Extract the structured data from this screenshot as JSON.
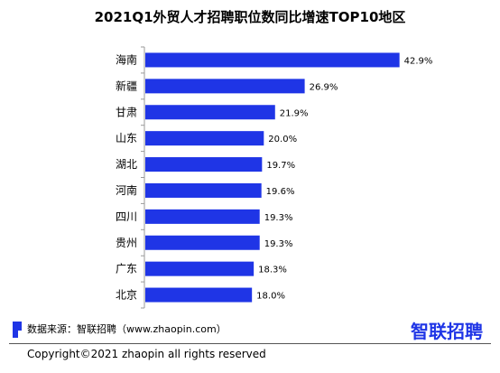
{
  "colors": {
    "bar": "#1f35e6",
    "axis": "#9a9a9a",
    "logo": "#1f35e6"
  },
  "chart_data": {
    "type": "bar",
    "orientation": "horizontal",
    "title": "2021Q1外贸人才招聘职位数同比增速TOP10地区",
    "categories": [
      "海南",
      "新疆",
      "甘肃",
      "山东",
      "湖北",
      "河南",
      "四川",
      "贵州",
      "广东",
      "北京"
    ],
    "values": [
      42.9,
      26.9,
      21.9,
      20.0,
      19.7,
      19.6,
      19.3,
      19.3,
      18.3,
      18.0
    ],
    "value_labels": [
      "42.9%",
      "26.9%",
      "21.9%",
      "20.0%",
      "19.7%",
      "19.6%",
      "19.3%",
      "19.3%",
      "18.3%",
      "18.0%"
    ],
    "xlim": [
      0,
      46
    ],
    "grid": false,
    "legend": "none"
  },
  "footer": {
    "source": "数据来源：智联招聘（www.zhaopin.com）",
    "logo_text": "智联招聘",
    "copyright": "Copyright©2021 zhaopin all rights reserved"
  }
}
